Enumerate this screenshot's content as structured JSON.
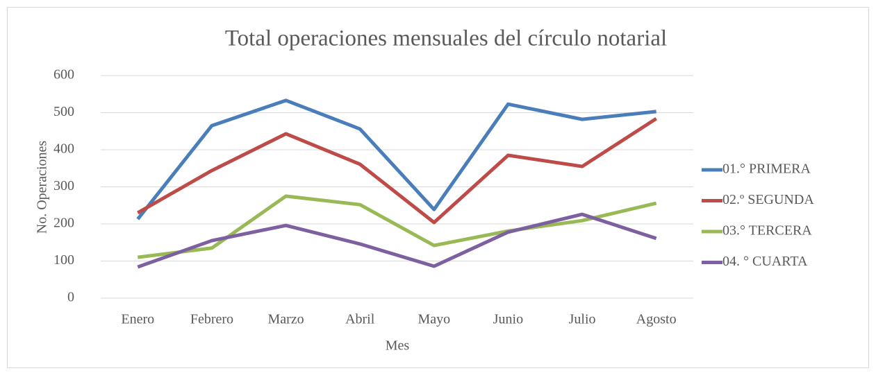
{
  "chart_data": {
    "type": "line",
    "title": "Total operaciones mensuales del círculo notarial",
    "xlabel": "Mes",
    "ylabel": "No. Operaciones",
    "categories": [
      "Enero",
      "Febrero",
      "Marzo",
      "Abril",
      "Mayo",
      "Junio",
      "Julio",
      "Agosto"
    ],
    "series": [
      {
        "name": "01.° PRIMERA",
        "color": "#4a7ebb",
        "values": [
          213,
          465,
          533,
          456,
          239,
          523,
          482,
          503
        ]
      },
      {
        "name": "02.º SEGUNDA",
        "color": "#be4b48",
        "values": [
          230,
          344,
          443,
          361,
          204,
          385,
          355,
          484
        ]
      },
      {
        "name": "03.° TERCERA",
        "color": "#98b954",
        "values": [
          110,
          135,
          275,
          252,
          142,
          181,
          209,
          256
        ]
      },
      {
        "name": "04. ° CUARTA",
        "color": "#7d60a0",
        "values": [
          84,
          155,
          196,
          146,
          86,
          178,
          226,
          161
        ]
      }
    ],
    "ylim": [
      0,
      600
    ],
    "yticks": [
      0,
      100,
      200,
      300,
      400,
      500,
      600
    ],
    "grid": true,
    "legend": "right"
  }
}
